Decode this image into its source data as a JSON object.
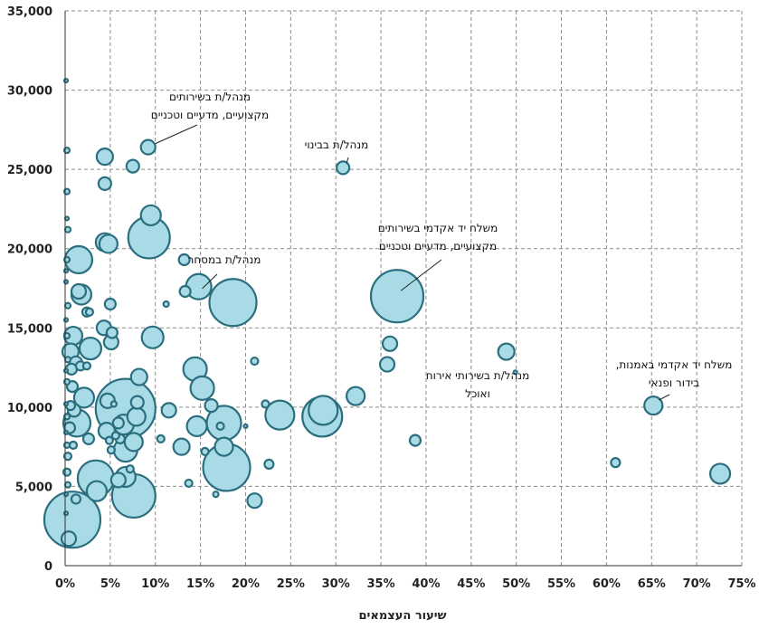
{
  "chart_data": {
    "type": "bubble",
    "xlabel": "שיעור העצמאים",
    "ylabel": "",
    "xlim": [
      0,
      75
    ],
    "ylim": [
      0,
      35000
    ],
    "x_ticks": [
      "0%",
      "5%",
      "10%",
      "15%",
      "20%",
      "25%",
      "30%",
      "35%",
      "40%",
      "45%",
      "50%",
      "55%",
      "60%",
      "65%",
      "70%",
      "75%"
    ],
    "y_ticks": [
      "0",
      "5,000",
      "10,000",
      "15,000",
      "20,000",
      "25,000",
      "30,000",
      "35,000"
    ],
    "grid": true,
    "points": [
      {
        "x": 0.1,
        "y": 30600,
        "size": 2
      },
      {
        "x": 0.2,
        "y": 26200,
        "size": 3
      },
      {
        "x": 0.2,
        "y": 23600,
        "size": 3
      },
      {
        "x": 0.2,
        "y": 21900,
        "size": 2
      },
      {
        "x": 0.3,
        "y": 21200,
        "size": 3
      },
      {
        "x": 0.2,
        "y": 19300,
        "size": 3
      },
      {
        "x": 0.1,
        "y": 18600,
        "size": 2
      },
      {
        "x": 0.1,
        "y": 17900,
        "size": 2
      },
      {
        "x": 0.3,
        "y": 16400,
        "size": 3
      },
      {
        "x": 0.1,
        "y": 15500,
        "size": 2
      },
      {
        "x": 0.2,
        "y": 14500,
        "size": 3
      },
      {
        "x": 0.3,
        "y": 13000,
        "size": 3
      },
      {
        "x": 0.1,
        "y": 12300,
        "size": 2
      },
      {
        "x": 0.2,
        "y": 11600,
        "size": 3
      },
      {
        "x": 0.1,
        "y": 10200,
        "size": 2
      },
      {
        "x": 0.2,
        "y": 9400,
        "size": 3
      },
      {
        "x": 0.1,
        "y": 8400,
        "size": 2
      },
      {
        "x": 0.2,
        "y": 7600,
        "size": 3
      },
      {
        "x": 0.3,
        "y": 6900,
        "size": 4
      },
      {
        "x": 0.2,
        "y": 5900,
        "size": 4
      },
      {
        "x": 0.3,
        "y": 5100,
        "size": 3
      },
      {
        "x": 0.1,
        "y": 4500,
        "size": 2
      },
      {
        "x": 0.1,
        "y": 3300,
        "size": 2
      },
      {
        "x": 0.4,
        "y": 1700,
        "size": 8
      },
      {
        "x": 0.8,
        "y": 2900,
        "size": 31
      },
      {
        "x": 1.5,
        "y": 19300,
        "size": 15
      },
      {
        "x": 1.8,
        "y": 17100,
        "size": 11
      },
      {
        "x": 1.5,
        "y": 17300,
        "size": 8
      },
      {
        "x": 2.4,
        "y": 16000,
        "size": 5
      },
      {
        "x": 2.7,
        "y": 16000,
        "size": 4
      },
      {
        "x": 0.9,
        "y": 14500,
        "size": 10
      },
      {
        "x": 0.6,
        "y": 13500,
        "size": 9
      },
      {
        "x": 2.8,
        "y": 13700,
        "size": 12
      },
      {
        "x": 1.2,
        "y": 12800,
        "size": 7
      },
      {
        "x": 1.7,
        "y": 12600,
        "size": 5
      },
      {
        "x": 0.7,
        "y": 12400,
        "size": 6
      },
      {
        "x": 2.4,
        "y": 12600,
        "size": 4
      },
      {
        "x": 0.8,
        "y": 11300,
        "size": 6
      },
      {
        "x": 2.1,
        "y": 10600,
        "size": 11
      },
      {
        "x": 0.6,
        "y": 10100,
        "size": 5
      },
      {
        "x": 1.0,
        "y": 9800,
        "size": 7
      },
      {
        "x": 1.3,
        "y": 9000,
        "size": 15
      },
      {
        "x": 0.5,
        "y": 8700,
        "size": 6
      },
      {
        "x": 2.6,
        "y": 8000,
        "size": 6
      },
      {
        "x": 0.9,
        "y": 7600,
        "size": 4
      },
      {
        "x": 3.4,
        "y": 5500,
        "size": 20
      },
      {
        "x": 3.5,
        "y": 4700,
        "size": 11
      },
      {
        "x": 1.2,
        "y": 4200,
        "size": 5
      },
      {
        "x": 4.4,
        "y": 25800,
        "size": 9
      },
      {
        "x": 4.4,
        "y": 24100,
        "size": 7
      },
      {
        "x": 4.4,
        "y": 20400,
        "size": 10
      },
      {
        "x": 4.8,
        "y": 20300,
        "size": 10
      },
      {
        "x": 5.0,
        "y": 16500,
        "size": 6
      },
      {
        "x": 4.3,
        "y": 15000,
        "size": 8
      },
      {
        "x": 5.2,
        "y": 14700,
        "size": 6
      },
      {
        "x": 5.1,
        "y": 14100,
        "size": 8
      },
      {
        "x": 4.7,
        "y": 10400,
        "size": 8
      },
      {
        "x": 6.7,
        "y": 9900,
        "size": 33
      },
      {
        "x": 4.6,
        "y": 8500,
        "size": 9
      },
      {
        "x": 5.9,
        "y": 9000,
        "size": 6
      },
      {
        "x": 5.6,
        "y": 8200,
        "size": 4
      },
      {
        "x": 4.9,
        "y": 7900,
        "size": 4
      },
      {
        "x": 5.1,
        "y": 7300,
        "size": 4
      },
      {
        "x": 5.4,
        "y": 10200,
        "size": 3
      },
      {
        "x": 6.1,
        "y": 8000,
        "size": 5
      },
      {
        "x": 6.5,
        "y": 8900,
        "size": 11
      },
      {
        "x": 6.7,
        "y": 7300,
        "size": 13
      },
      {
        "x": 7.6,
        "y": 7800,
        "size": 10
      },
      {
        "x": 7.2,
        "y": 6100,
        "size": 4
      },
      {
        "x": 5.9,
        "y": 5400,
        "size": 8
      },
      {
        "x": 6.7,
        "y": 5600,
        "size": 11
      },
      {
        "x": 7.6,
        "y": 4400,
        "size": 24
      },
      {
        "x": 7.5,
        "y": 25200,
        "size": 7
      },
      {
        "x": 9.2,
        "y": 26400,
        "size": 8
      },
      {
        "x": 9.5,
        "y": 22100,
        "size": 11
      },
      {
        "x": 9.3,
        "y": 20700,
        "size": 23
      },
      {
        "x": 9.7,
        "y": 14400,
        "size": 12
      },
      {
        "x": 8.2,
        "y": 11900,
        "size": 9
      },
      {
        "x": 8.0,
        "y": 10300,
        "size": 7
      },
      {
        "x": 7.9,
        "y": 9400,
        "size": 10
      },
      {
        "x": 10.6,
        "y": 8000,
        "size": 4
      },
      {
        "x": 11.2,
        "y": 16500,
        "size": 3
      },
      {
        "x": 11.5,
        "y": 9800,
        "size": 8
      },
      {
        "x": 13.2,
        "y": 19300,
        "size": 6
      },
      {
        "x": 13.3,
        "y": 17300,
        "size": 6
      },
      {
        "x": 14.8,
        "y": 17600,
        "size": 14
      },
      {
        "x": 14.4,
        "y": 12400,
        "size": 13
      },
      {
        "x": 15.2,
        "y": 11200,
        "size": 13
      },
      {
        "x": 16.2,
        "y": 10100,
        "size": 7
      },
      {
        "x": 14.6,
        "y": 8800,
        "size": 11
      },
      {
        "x": 17.6,
        "y": 9000,
        "size": 19
      },
      {
        "x": 17.2,
        "y": 8800,
        "size": 4
      },
      {
        "x": 12.9,
        "y": 7500,
        "size": 9
      },
      {
        "x": 17.6,
        "y": 7500,
        "size": 10
      },
      {
        "x": 17.9,
        "y": 6200,
        "size": 26
      },
      {
        "x": 15.5,
        "y": 7200,
        "size": 4
      },
      {
        "x": 13.7,
        "y": 5200,
        "size": 4
      },
      {
        "x": 16.7,
        "y": 4500,
        "size": 3
      },
      {
        "x": 18.6,
        "y": 16600,
        "size": 26
      },
      {
        "x": 20.0,
        "y": 8800,
        "size": 2
      },
      {
        "x": 21.0,
        "y": 12900,
        "size": 4
      },
      {
        "x": 22.2,
        "y": 10200,
        "size": 4
      },
      {
        "x": 22.6,
        "y": 6400,
        "size": 5
      },
      {
        "x": 21.0,
        "y": 4100,
        "size": 8
      },
      {
        "x": 23.8,
        "y": 9500,
        "size": 16
      },
      {
        "x": 28.5,
        "y": 9400,
        "size": 22
      },
      {
        "x": 28.6,
        "y": 9800,
        "size": 16
      },
      {
        "x": 30.8,
        "y": 25100,
        "size": 7
      },
      {
        "x": 32.2,
        "y": 10700,
        "size": 10
      },
      {
        "x": 35.7,
        "y": 12700,
        "size": 8
      },
      {
        "x": 36.0,
        "y": 14000,
        "size": 8
      },
      {
        "x": 36.8,
        "y": 17000,
        "size": 29
      },
      {
        "x": 38.8,
        "y": 7900,
        "size": 6
      },
      {
        "x": 48.9,
        "y": 13500,
        "size": 9
      },
      {
        "x": 49.9,
        "y": 12200,
        "size": 2
      },
      {
        "x": 61.0,
        "y": 6500,
        "size": 5
      },
      {
        "x": 65.2,
        "y": 10100,
        "size": 10
      },
      {
        "x": 72.6,
        "y": 5800,
        "size": 11
      }
    ],
    "annotations": [
      {
        "lines": [
          "מנהל/ת בשירותים",
          "מקצועיים, מדעיים וטכניים"
        ],
        "x": 9.2,
        "y": 26400
      },
      {
        "lines": [
          "מנהל/ת בבינוי"
        ],
        "x": 30.8,
        "y": 25100
      },
      {
        "lines": [
          "משלח יד אקדמי בשירותים",
          "מקצועיים, מדעיים וטכניים"
        ],
        "x": 36.8,
        "y": 17000
      },
      {
        "lines": [
          "מנהל/ת במסחר"
        ],
        "x": 14.8,
        "y": 17600
      },
      {
        "lines": [
          "מנהל/ת בשירותי אירוח",
          "ואוכל"
        ],
        "x": 49.9,
        "y": 12200
      },
      {
        "lines": [
          "משלח יד אקדמי באמנות,",
          "בידור ופנאי"
        ],
        "x": 65.2,
        "y": 10100
      }
    ]
  }
}
